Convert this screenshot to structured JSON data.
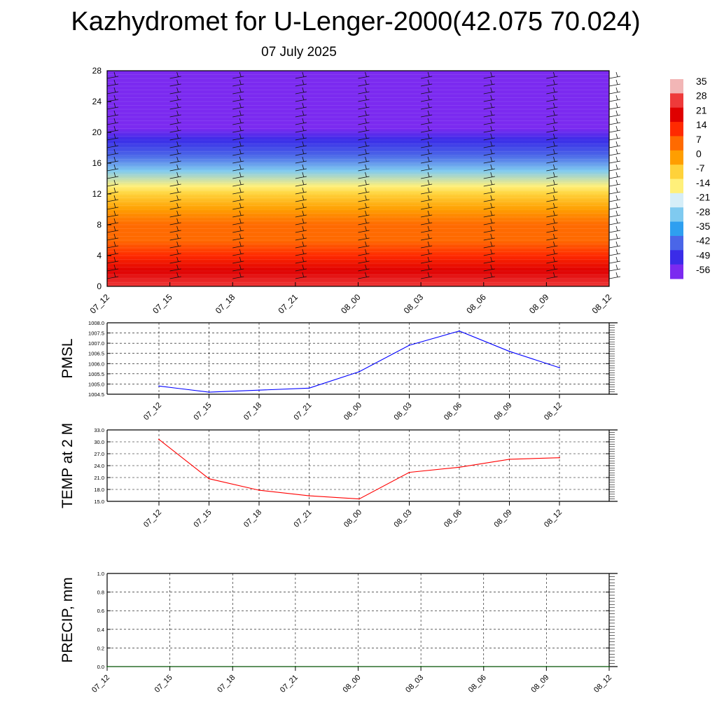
{
  "page": {
    "title": "Kazhydromet for U-Lenger-2000(42.075 70.024)",
    "subtitle": "07 July 2025"
  },
  "colors": {
    "pmsl_line": "#0000ff",
    "temp_line": "#ff0000",
    "precip_line": "#006400",
    "grid": "#000000"
  },
  "chart_data": [
    {
      "id": "cross_section",
      "type": "heatmap",
      "title": "",
      "ylabel": "",
      "ylim": [
        0,
        28
      ],
      "y_ticks": [
        "0",
        "4",
        "8",
        "12",
        "16",
        "20",
        "24",
        "28"
      ],
      "x_ticks": [
        "07_12",
        "07_15",
        "07_18",
        "07_21",
        "08_00",
        "08_03",
        "08_06",
        "08_09",
        "08_12"
      ],
      "colorbar": {
        "labels": [
          "35",
          "28",
          "21",
          "14",
          "7",
          "0",
          "-7",
          "-14",
          "-21",
          "-28",
          "-35",
          "-42",
          "-49",
          "-56"
        ],
        "colors": [
          "#f2b6b6",
          "#ee3a3a",
          "#df0000",
          "#ff2a00",
          "#ff6a00",
          "#ff9e00",
          "#ffd23a",
          "#fff07a",
          "#d6eef8",
          "#7fcaf0",
          "#2e9ff0",
          "#4a66e8",
          "#3a2ce8",
          "#7b2af0"
        ]
      },
      "profile": [
        {
          "height": 0,
          "value": 28
        },
        {
          "height": 2,
          "value": 23
        },
        {
          "height": 4,
          "value": 17
        },
        {
          "height": 6,
          "value": 10
        },
        {
          "height": 8,
          "value": 4
        },
        {
          "height": 10,
          "value": -2
        },
        {
          "height": 12,
          "value": -10
        },
        {
          "height": 13,
          "value": -17
        },
        {
          "height": 15,
          "value": -28
        },
        {
          "height": 17,
          "value": -40
        },
        {
          "height": 19,
          "value": -52
        },
        {
          "height": 20.5,
          "value": -58
        },
        {
          "height": 22,
          "value": -56
        },
        {
          "height": 28,
          "value": -56
        }
      ]
    },
    {
      "id": "pmsl",
      "type": "line",
      "title": "",
      "ylabel": "PMSL",
      "ylim": [
        1004.5,
        1008.0
      ],
      "y_ticks": [
        "1004.5",
        "1005.0",
        "1005.5",
        "1006.0",
        "1006.5",
        "1007.0",
        "1007.5",
        "1008.0"
      ],
      "categories": [
        "07_12",
        "07_15",
        "07_18",
        "07_21",
        "08_00",
        "08_03",
        "08_06",
        "08_09",
        "08_12"
      ],
      "grid": true,
      "series": [
        {
          "values": [
            1004.9,
            1004.6,
            1004.7,
            1004.8,
            1005.6,
            1006.9,
            1007.6,
            1006.6,
            1005.8
          ]
        }
      ]
    },
    {
      "id": "temp2m",
      "type": "line",
      "title": "",
      "ylabel": "TEMP at 2 M",
      "ylim": [
        15.0,
        33.0
      ],
      "y_ticks": [
        "15.0",
        "18.0",
        "21.0",
        "24.0",
        "27.0",
        "30.0",
        "33.0"
      ],
      "categories": [
        "07_12",
        "07_15",
        "07_18",
        "07_21",
        "08_00",
        "08_03",
        "08_06",
        "08_09",
        "08_12"
      ],
      "grid": true,
      "series": [
        {
          "values": [
            30.6,
            20.7,
            17.8,
            16.4,
            15.6,
            22.3,
            23.6,
            25.6,
            26.0
          ]
        }
      ]
    },
    {
      "id": "precip",
      "type": "line",
      "title": "",
      "ylabel": "PRECIP, mm",
      "ylim": [
        0.0,
        1.0
      ],
      "y_ticks": [
        "0.0",
        "0.2",
        "0.4",
        "0.6",
        "0.8",
        "1.0"
      ],
      "x_ticks": [
        "07_12",
        "07_15",
        "07_18",
        "07_21",
        "08_00",
        "08_03",
        "08_06",
        "08_09",
        "08_12"
      ],
      "grid": true,
      "series": [
        {
          "values": [
            0,
            0,
            0,
            0,
            0,
            0,
            0,
            0,
            0
          ]
        }
      ]
    }
  ]
}
